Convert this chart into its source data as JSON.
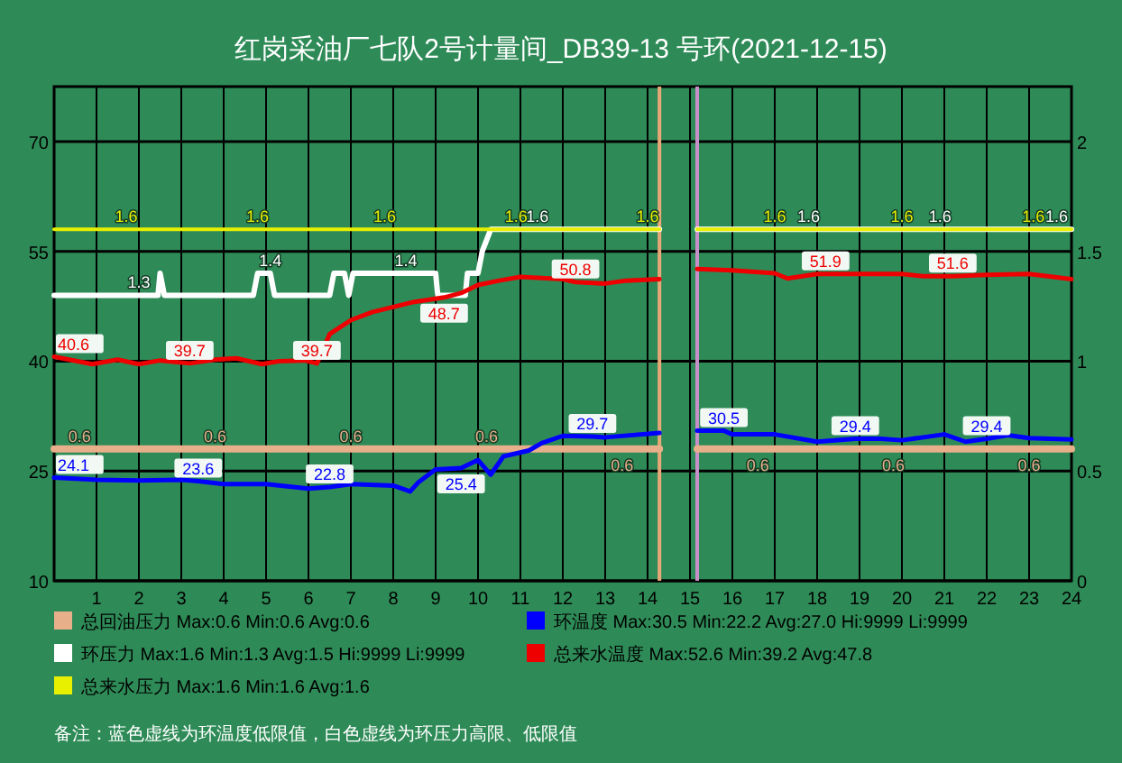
{
  "chart_data": {
    "type": "line",
    "title": "红岗采油厂七队2号计量间_DB39-13 号环(2021-12-15)",
    "xlim": [
      0,
      24
    ],
    "xticks": [
      1,
      2,
      3,
      4,
      5,
      6,
      7,
      8,
      9,
      10,
      11,
      12,
      13,
      14,
      15,
      16,
      17,
      18,
      19,
      20,
      21,
      22,
      23,
      24
    ],
    "ylim": [
      10,
      77.5
    ],
    "yticks": [
      10,
      25,
      40,
      55,
      70
    ],
    "y2lim": [
      0,
      2.25
    ],
    "y2ticks": [
      0,
      0.5,
      1,
      1.5,
      2
    ],
    "grid": true,
    "legend": "bottom",
    "ref_lines": [
      {
        "axis": "x",
        "value": 14.28,
        "color": "#e8a878"
      },
      {
        "axis": "x",
        "value": 15.17,
        "color": "#c890c8"
      }
    ],
    "annotations": [
      "备注：蓝色虚线为环温度低限值，白色虚线为环压力高限、低限值"
    ],
    "series": [
      {
        "name": "总回油压力 Max:0.6 Min:0.6 Avg:0.6",
        "color": "#e8b08a",
        "axis": "y2",
        "x": [
          0,
          0.6,
          3.8,
          7.0,
          10.2,
          13.4,
          14.28,
          14.7,
          15.17,
          16.6,
          19.8,
          23.0,
          24
        ],
        "values": [
          0.6,
          0.6,
          0.6,
          0.6,
          0.6,
          0.6,
          0.6,
          null,
          0.6,
          0.6,
          0.6,
          0.6,
          0.6
        ],
        "value_labels": [
          null,
          "0.6",
          "0.6",
          "0.6",
          "0.6",
          "0.6",
          null,
          null,
          null,
          "0.6",
          "0.6",
          "0.6",
          null
        ]
      },
      {
        "name": "环温度 Max:30.5 Min:22.2 Avg:27.0 Hi:9999 Li:9999",
        "color": "#0000ff",
        "axis": "y",
        "x": [
          0,
          1.0,
          2.0,
          3.0,
          3.4,
          4.0,
          5.0,
          6.0,
          6.5,
          7.0,
          8.0,
          8.4,
          8.6,
          9.0,
          9.6,
          10.0,
          10.3,
          10.6,
          11.2,
          11.5,
          12.0,
          12.7,
          13.0,
          14.28,
          14.7,
          15.17,
          15.8,
          16.0,
          17.0,
          18.0,
          18.9,
          19.5,
          20.0,
          21.0,
          21.5,
          22.0,
          22.5,
          23.0,
          24.0
        ],
        "values": [
          24.1,
          23.8,
          23.7,
          23.8,
          23.6,
          23.2,
          23.2,
          22.6,
          22.8,
          23.2,
          23.0,
          22.2,
          23.5,
          25.2,
          25.4,
          26.5,
          24.5,
          27.0,
          27.8,
          28.8,
          29.8,
          29.7,
          29.6,
          30.2,
          null,
          30.5,
          30.5,
          30.0,
          30.0,
          29.0,
          29.4,
          29.4,
          29.2,
          30.0,
          29.0,
          29.4,
          29.9,
          29.5,
          29.3
        ],
        "value_labels": [
          "24.1",
          null,
          null,
          null,
          "23.6",
          null,
          null,
          null,
          "22.8",
          null,
          null,
          null,
          null,
          null,
          "25.4",
          null,
          null,
          null,
          null,
          null,
          null,
          "29.7",
          null,
          null,
          null,
          null,
          "30.5",
          null,
          null,
          null,
          "29.4",
          null,
          null,
          null,
          null,
          "29.4",
          null,
          null,
          null
        ]
      },
      {
        "name": "环压力 Max:1.6 Min:1.3 Avg:1.5 Hi:9999 Li:9999",
        "color": "#ffffff",
        "axis": "y2",
        "x": [
          0,
          2.0,
          2.45,
          2.5,
          2.6,
          4.7,
          4.8,
          5.1,
          5.2,
          6.5,
          6.6,
          6.85,
          6.95,
          7.05,
          8.3,
          9.0,
          9.05,
          9.7,
          9.75,
          10.0,
          10.1,
          10.3,
          11.4,
          14.28,
          14.7,
          15.17,
          17.8,
          20.9,
          24.0
        ],
        "values": [
          1.3,
          1.3,
          1.3,
          1.4,
          1.3,
          1.3,
          1.4,
          1.4,
          1.3,
          1.3,
          1.4,
          1.4,
          1.3,
          1.4,
          1.4,
          1.4,
          1.3,
          1.3,
          1.4,
          1.4,
          1.5,
          1.6,
          1.6,
          1.6,
          null,
          1.6,
          1.6,
          1.6,
          1.6
        ],
        "value_labels": [
          null,
          "1.3",
          null,
          null,
          null,
          null,
          null,
          "1.4",
          null,
          null,
          null,
          null,
          null,
          null,
          "1.4",
          null,
          null,
          null,
          null,
          null,
          null,
          null,
          "1.6",
          null,
          null,
          null,
          "1.6",
          "1.6",
          "1.6"
        ]
      },
      {
        "name": "总来水温度 Max:52.6 Min:39.2 Avg:47.8",
        "color": "#ee0000",
        "axis": "y",
        "x": [
          0,
          0.9,
          1.5,
          2.0,
          2.5,
          3.2,
          3.8,
          4.3,
          4.9,
          5.3,
          5.9,
          6.2,
          6.5,
          7.0,
          7.5,
          8.0,
          8.5,
          9.2,
          9.6,
          10.0,
          10.5,
          11.0,
          12.0,
          12.3,
          13.0,
          13.5,
          14.28,
          14.7,
          15.17,
          16.0,
          17.0,
          17.3,
          18.0,
          18.2,
          19.0,
          20.0,
          20.5,
          21.2,
          22.0,
          23.0,
          24.0
        ],
        "values": [
          40.6,
          39.6,
          40.2,
          39.6,
          40.1,
          39.7,
          40.2,
          40.4,
          39.6,
          40.0,
          40.1,
          39.7,
          43.7,
          45.6,
          46.7,
          47.4,
          48.1,
          48.7,
          49.3,
          50.4,
          51.0,
          51.5,
          51.2,
          50.8,
          50.6,
          51.0,
          51.2,
          null,
          52.6,
          52.4,
          52.0,
          51.3,
          51.9,
          51.9,
          51.9,
          51.9,
          51.6,
          51.6,
          51.8,
          51.9,
          51.2
        ],
        "value_labels": [
          "40.6",
          null,
          null,
          null,
          null,
          "39.7",
          null,
          null,
          null,
          null,
          null,
          "39.7",
          null,
          null,
          null,
          null,
          null,
          "48.7",
          null,
          null,
          null,
          null,
          null,
          "50.8",
          null,
          null,
          null,
          null,
          null,
          null,
          null,
          null,
          null,
          "51.9",
          null,
          null,
          null,
          "51.6",
          null,
          null,
          null
        ]
      },
      {
        "name": "总来水压力 Max:1.6 Min:1.6 Avg:1.6",
        "color": "#e8f000",
        "axis": "y2",
        "x": [
          0,
          1.7,
          4.8,
          7.8,
          10.9,
          14.0,
          14.28,
          14.7,
          15.17,
          17.0,
          20.0,
          23.1,
          24
        ],
        "values": [
          1.6,
          1.6,
          1.6,
          1.6,
          1.6,
          1.6,
          1.6,
          null,
          1.6,
          1.6,
          1.6,
          1.6,
          1.6
        ],
        "value_labels": [
          null,
          "1.6",
          "1.6",
          "1.6",
          "1.6",
          "1.6",
          null,
          null,
          null,
          "1.6",
          "1.6",
          "1.6",
          null
        ]
      }
    ]
  }
}
